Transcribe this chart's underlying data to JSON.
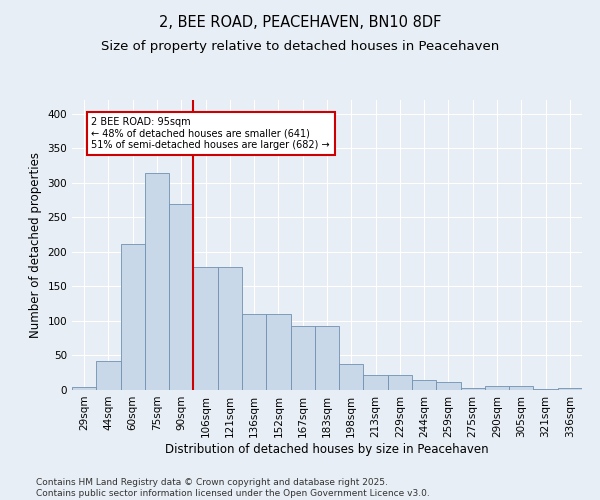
{
  "title": "2, BEE ROAD, PEACEHAVEN, BN10 8DF",
  "subtitle": "Size of property relative to detached houses in Peacehaven",
  "xlabel": "Distribution of detached houses by size in Peacehaven",
  "ylabel": "Number of detached properties",
  "bar_labels": [
    "29sqm",
    "44sqm",
    "60sqm",
    "75sqm",
    "90sqm",
    "106sqm",
    "121sqm",
    "136sqm",
    "152sqm",
    "167sqm",
    "183sqm",
    "198sqm",
    "213sqm",
    "229sqm",
    "244sqm",
    "259sqm",
    "275sqm",
    "290sqm",
    "305sqm",
    "321sqm",
    "336sqm"
  ],
  "bar_values": [
    5,
    42,
    212,
    314,
    270,
    178,
    178,
    110,
    110,
    92,
    92,
    38,
    22,
    22,
    14,
    11,
    3,
    6,
    6,
    2,
    3
  ],
  "bar_color": "#c8d8e8",
  "bar_edge_color": "#7090b0",
  "red_line_x": 4.5,
  "annotation_text": "2 BEE ROAD: 95sqm\n← 48% of detached houses are smaller (641)\n51% of semi-detached houses are larger (682) →",
  "annotation_box_color": "#ffffff",
  "annotation_box_edge": "#cc0000",
  "red_line_color": "#cc0000",
  "background_color": "#e8eef5",
  "plot_bg_color": "#e8eef5",
  "footer_text": "Contains HM Land Registry data © Crown copyright and database right 2025.\nContains public sector information licensed under the Open Government Licence v3.0.",
  "ylim": [
    0,
    420
  ],
  "yticks": [
    0,
    50,
    100,
    150,
    200,
    250,
    300,
    350,
    400
  ],
  "title_fontsize": 10.5,
  "subtitle_fontsize": 9.5,
  "axis_fontsize": 8.5,
  "tick_fontsize": 7.5,
  "footer_fontsize": 6.5
}
